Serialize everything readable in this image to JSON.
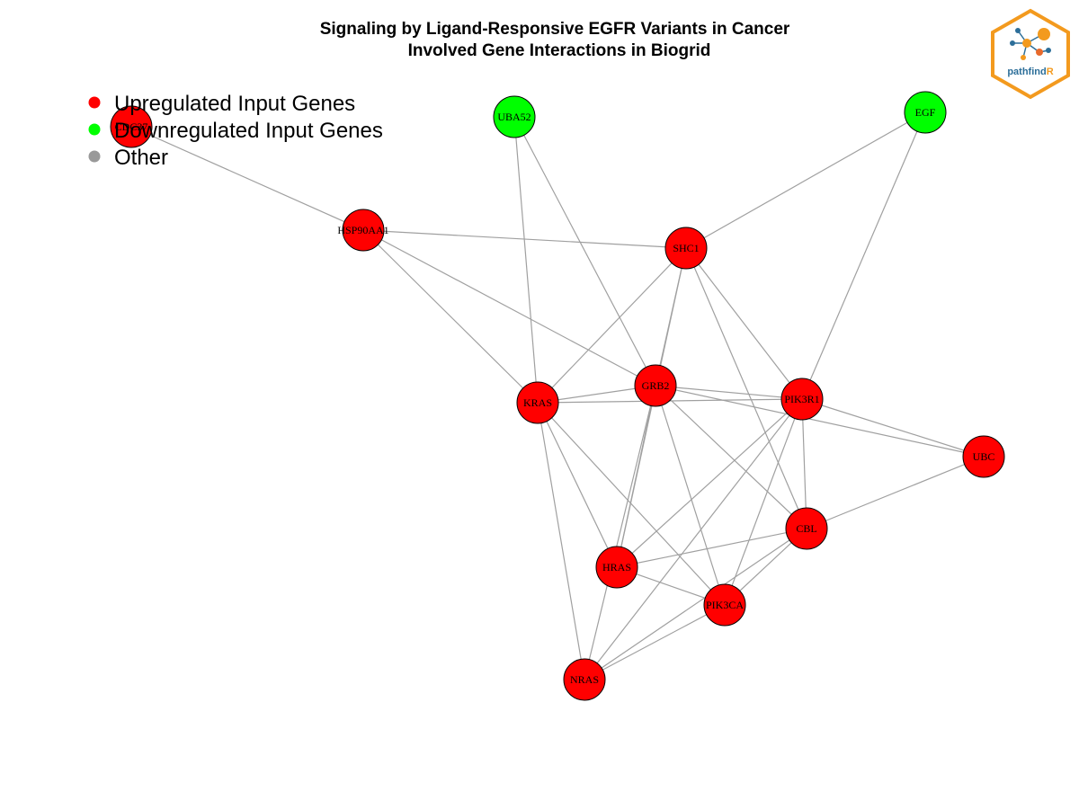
{
  "title": {
    "line1": "Signaling by Ligand-Responsive EGFR Variants in Cancer",
    "line2": "Involved Gene Interactions in Biogrid"
  },
  "legend": [
    {
      "label": "Upregulated Input Genes",
      "color": "#ff0000"
    },
    {
      "label": "Downregulated Input Genes",
      "color": "#00ff00"
    },
    {
      "label": "Other",
      "color": "#999999"
    }
  ],
  "logo": {
    "text_main": "pathfind",
    "text_accent": "R",
    "colors": {
      "border": "#f39a1e",
      "main_text": "#2c6e99",
      "accent_text": "#f39a1e"
    }
  },
  "colors": {
    "upregulated": "#ff0000",
    "downregulated": "#00ff00",
    "edge": "#a0a0a0"
  },
  "nodes": [
    {
      "id": "HSP90AA1",
      "status": "upregulated"
    },
    {
      "id": "UBA52",
      "status": "downregulated"
    },
    {
      "id": "EGF",
      "status": "downregulated"
    },
    {
      "id": "SHC1",
      "status": "upregulated"
    },
    {
      "id": "GRB2",
      "status": "upregulated"
    },
    {
      "id": "KRAS",
      "status": "upregulated"
    },
    {
      "id": "PIK3R1",
      "status": "upregulated"
    },
    {
      "id": "UBC",
      "status": "upregulated"
    },
    {
      "id": "CBL",
      "status": "upregulated"
    },
    {
      "id": "HRAS",
      "status": "upregulated"
    },
    {
      "id": "PIK3CA",
      "status": "upregulated"
    },
    {
      "id": "NRAS",
      "status": "upregulated"
    },
    {
      "id": "CDC37",
      "status": "upregulated"
    }
  ],
  "edges": [
    [
      "CDC37",
      "HSP90AA1"
    ],
    [
      "HSP90AA1",
      "SHC1"
    ],
    [
      "HSP90AA1",
      "KRAS"
    ],
    [
      "HSP90AA1",
      "GRB2"
    ],
    [
      "UBA52",
      "KRAS"
    ],
    [
      "UBA52",
      "GRB2"
    ],
    [
      "EGF",
      "SHC1"
    ],
    [
      "EGF",
      "PIK3R1"
    ],
    [
      "SHC1",
      "KRAS"
    ],
    [
      "SHC1",
      "GRB2"
    ],
    [
      "SHC1",
      "HRAS"
    ],
    [
      "SHC1",
      "PIK3R1"
    ],
    [
      "SHC1",
      "CBL"
    ],
    [
      "GRB2",
      "KRAS"
    ],
    [
      "GRB2",
      "PIK3R1"
    ],
    [
      "GRB2",
      "UBC"
    ],
    [
      "GRB2",
      "CBL"
    ],
    [
      "GRB2",
      "HRAS"
    ],
    [
      "GRB2",
      "NRAS"
    ],
    [
      "GRB2",
      "PIK3CA"
    ],
    [
      "KRAS",
      "PIK3R1"
    ],
    [
      "KRAS",
      "HRAS"
    ],
    [
      "KRAS",
      "PIK3CA"
    ],
    [
      "KRAS",
      "NRAS"
    ],
    [
      "PIK3R1",
      "UBC"
    ],
    [
      "PIK3R1",
      "CBL"
    ],
    [
      "PIK3R1",
      "HRAS"
    ],
    [
      "PIK3R1",
      "PIK3CA"
    ],
    [
      "PIK3R1",
      "NRAS"
    ],
    [
      "UBC",
      "CBL"
    ],
    [
      "CBL",
      "HRAS"
    ],
    [
      "CBL",
      "PIK3CA"
    ],
    [
      "CBL",
      "NRAS"
    ],
    [
      "HRAS",
      "PIK3CA"
    ],
    [
      "PIK3CA",
      "NRAS"
    ]
  ]
}
